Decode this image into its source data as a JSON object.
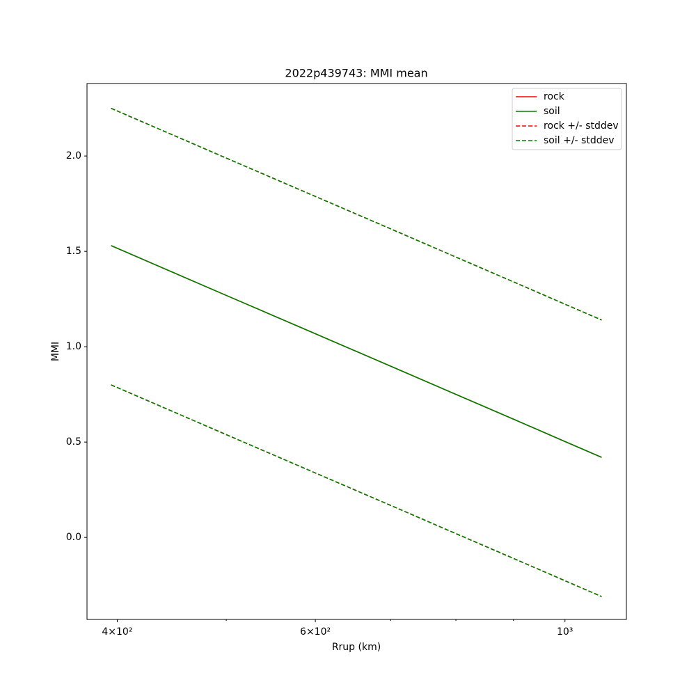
{
  "chart_data": {
    "type": "line",
    "title": "2022p439743: MMI mean",
    "xlabel": "Rrup (km)",
    "ylabel": "MMI",
    "xscale": "log",
    "xlim": [
      376,
      1134
    ],
    "ylim": [
      -0.43,
      2.38
    ],
    "xticks": [
      {
        "value": 400,
        "label": "4×10²"
      },
      {
        "value": 600,
        "label": "6×10²"
      },
      {
        "value": 1000,
        "label": "10³"
      }
    ],
    "xminorticks": [
      500,
      700,
      800,
      900
    ],
    "yticks": [
      {
        "value": 0,
        "label": "0.0"
      },
      0.5,
      {
        "value": 1,
        "label": "1.0"
      },
      1.5,
      {
        "value": 2,
        "label": "2.0"
      }
    ],
    "grid": false,
    "legend": "upper right",
    "x": [
      395,
      500,
      600,
      700,
      800,
      900,
      1000,
      1078
    ],
    "series": [
      {
        "name": "rock",
        "color": "#ff0000",
        "dash": false,
        "values": [
          1.53,
          1.269,
          1.068,
          0.898,
          0.75,
          0.62,
          0.503,
          0.42
        ]
      },
      {
        "name": "soil",
        "color": "#008000",
        "dash": false,
        "values": [
          1.53,
          1.269,
          1.068,
          0.898,
          0.75,
          0.62,
          0.503,
          0.42
        ]
      },
      {
        "name": "rock +/- stddev",
        "color": "#ff0000",
        "dash": true,
        "upper": [
          2.25,
          1.989,
          1.788,
          1.618,
          1.47,
          1.34,
          1.223,
          1.14
        ],
        "lower": [
          0.8,
          0.539,
          0.338,
          0.168,
          0.02,
          -0.11,
          -0.227,
          -0.31
        ]
      },
      {
        "name": "soil +/- stddev",
        "color": "#008000",
        "dash": true,
        "upper": [
          2.25,
          1.989,
          1.788,
          1.618,
          1.47,
          1.34,
          1.223,
          1.14
        ],
        "lower": [
          0.8,
          0.539,
          0.338,
          0.168,
          0.02,
          -0.11,
          -0.227,
          -0.31
        ]
      }
    ]
  }
}
